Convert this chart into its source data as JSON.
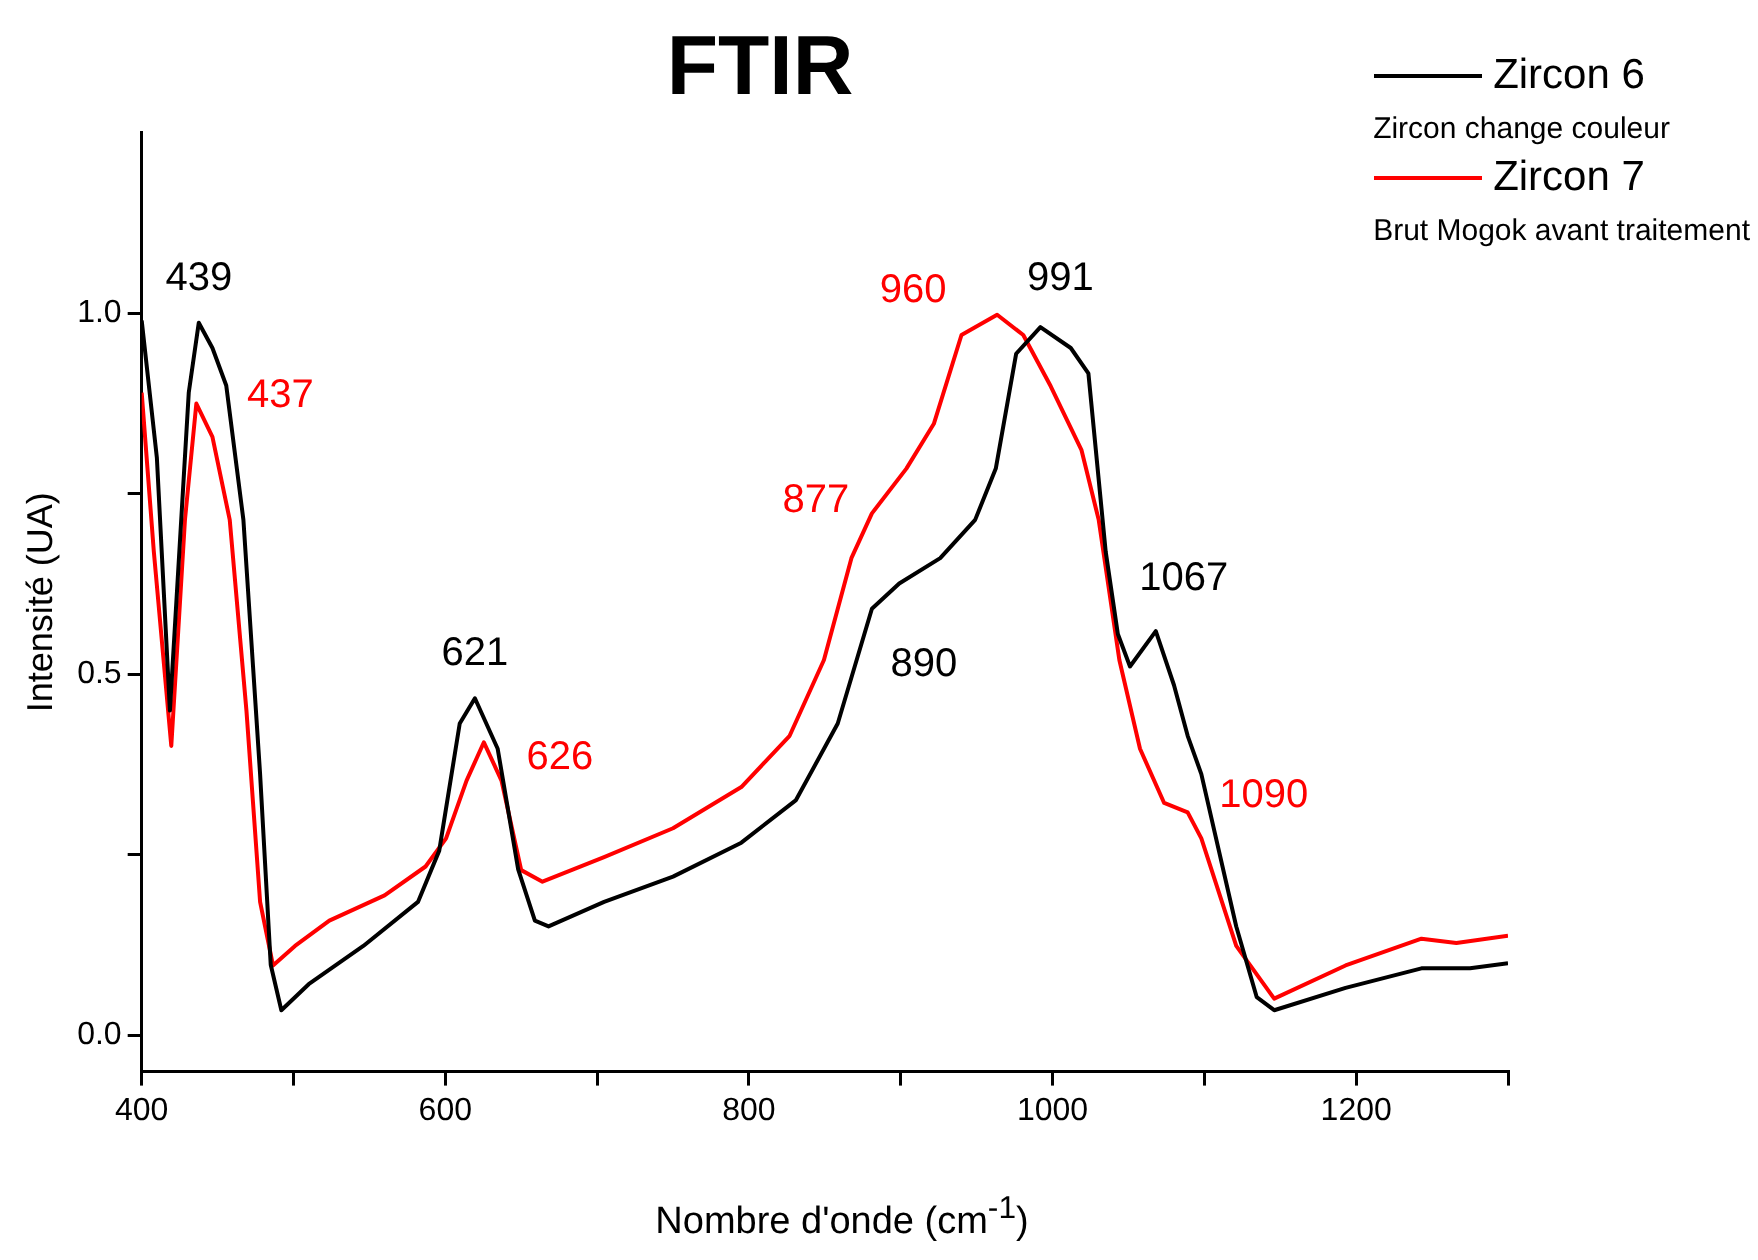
{
  "chart_data": {
    "type": "line",
    "title": "FTIR",
    "xlabel": "Nombre d'onde (cm$^{-1}$)",
    "ylabel": "Intensité (UA)",
    "xlim": [
      400,
      1300
    ],
    "xticks": [
      400,
      {
        "value": 500,
        "label": null
      },
      600,
      {
        "value": 700,
        "label": null
      },
      800,
      {
        "value": 900,
        "label": null
      },
      1000,
      {
        "value": 1100,
        "label": null
      },
      1200,
      {
        "value": 1300,
        "label": null
      }
    ],
    "ylim": [
      -0.05,
      1.25
    ],
    "yticks": [
      {
        "value": 0,
        "label": "0.0"
      },
      {
        "value": 0.25,
        "label": null
      },
      {
        "value": 0.5,
        "label": "0.5"
      },
      {
        "value": 0.75,
        "label": null
      },
      {
        "value": 1,
        "label": "1.0"
      }
    ],
    "grid": false,
    "legend": "top right",
    "marker": "none",
    "line_style": "solid",
    "series": [
      {
        "name": "Zircon 6",
        "color": "#000000",
        "x": [
          400,
          410,
          418.6,
          431,
          437.6,
          446.6,
          455.7,
          467,
          478,
          485,
          492,
          510,
          546,
          582,
          596,
          609.5,
          619.5,
          634.5,
          648,
          659,
          668,
          704.6,
          750,
          795,
          831,
          858.5,
          881,
          899,
          926,
          949,
          962.6,
          976,
          992,
          1012,
          1023.6,
          1035,
          1043,
          1051,
          1068,
          1080,
          1089,
          1098,
          1121,
          1134.5,
          1146,
          1193,
          1243,
          1275,
          1300
        ],
        "values": [
          0.99,
          0.8,
          0.45,
          0.89,
          0.987,
          0.952,
          0.9,
          0.714,
          0.362,
          0.098,
          0.035,
          0.071,
          0.124,
          0.185,
          0.256,
          0.432,
          0.467,
          0.397,
          0.23,
          0.159,
          0.151,
          0.185,
          0.22,
          0.267,
          0.326,
          0.432,
          0.591,
          0.626,
          0.661,
          0.714,
          0.785,
          0.944,
          0.981,
          0.952,
          0.917,
          0.67,
          0.556,
          0.511,
          0.56,
          0.485,
          0.415,
          0.362,
          0.151,
          0.053,
          0.035,
          0.066,
          0.093,
          0.093,
          0.1
        ]
      },
      {
        "name": "Zircon 7",
        "color": "#ff0000",
        "x": [
          400,
          408,
          419.5,
          428.5,
          436,
          446.6,
          458,
          469,
          478,
          486.5,
          501,
          523.6,
          560,
          587,
          600.5,
          614,
          625.4,
          637,
          650,
          664,
          704.6,
          750,
          795,
          826.8,
          849.4,
          867.5,
          881,
          903.7,
          921.8,
          940,
          951,
          963.5,
          980.7,
          998.8,
          1019,
          1030.4,
          1044,
          1057.6,
          1073.5,
          1089,
          1098,
          1121,
          1146,
          1193,
          1243,
          1266,
          1300
        ],
        "values": [
          0.89,
          0.67,
          0.401,
          0.714,
          0.875,
          0.829,
          0.714,
          0.45,
          0.185,
          0.097,
          0.124,
          0.159,
          0.194,
          0.234,
          0.273,
          0.353,
          0.406,
          0.353,
          0.229,
          0.213,
          0.247,
          0.287,
          0.344,
          0.415,
          0.52,
          0.661,
          0.723,
          0.785,
          0.847,
          0.97,
          0.983,
          0.998,
          0.97,
          0.899,
          0.811,
          0.714,
          0.52,
          0.397,
          0.322,
          0.309,
          0.273,
          0.124,
          0.051,
          0.097,
          0.134,
          0.128,
          0.138
        ]
      }
    ],
    "annotations": [
      {
        "text": "439",
        "x": 437.6,
        "y": 0.987
      },
      {
        "text": "437",
        "x": 436,
        "y": 0.875
      },
      {
        "text": "621",
        "x": 619.5,
        "y": 0.467
      },
      {
        "text": "626",
        "x": 625.4,
        "y": 0.406
      },
      {
        "text": "890",
        "x": 881,
        "y": 0.591
      },
      {
        "text": "877",
        "x": 881,
        "y": 0.723
      },
      {
        "text": "991",
        "x": 992,
        "y": 0.981
      },
      {
        "text": "960",
        "x": 963.5,
        "y": 0.998
      },
      {
        "text": "1067",
        "x": 1068,
        "y": 0.56
      },
      {
        "text": "1090",
        "x": 1089,
        "y": 0.309
      },
      "Zircon change couleur",
      "Brut Mogok avant traitement"
    ]
  }
}
